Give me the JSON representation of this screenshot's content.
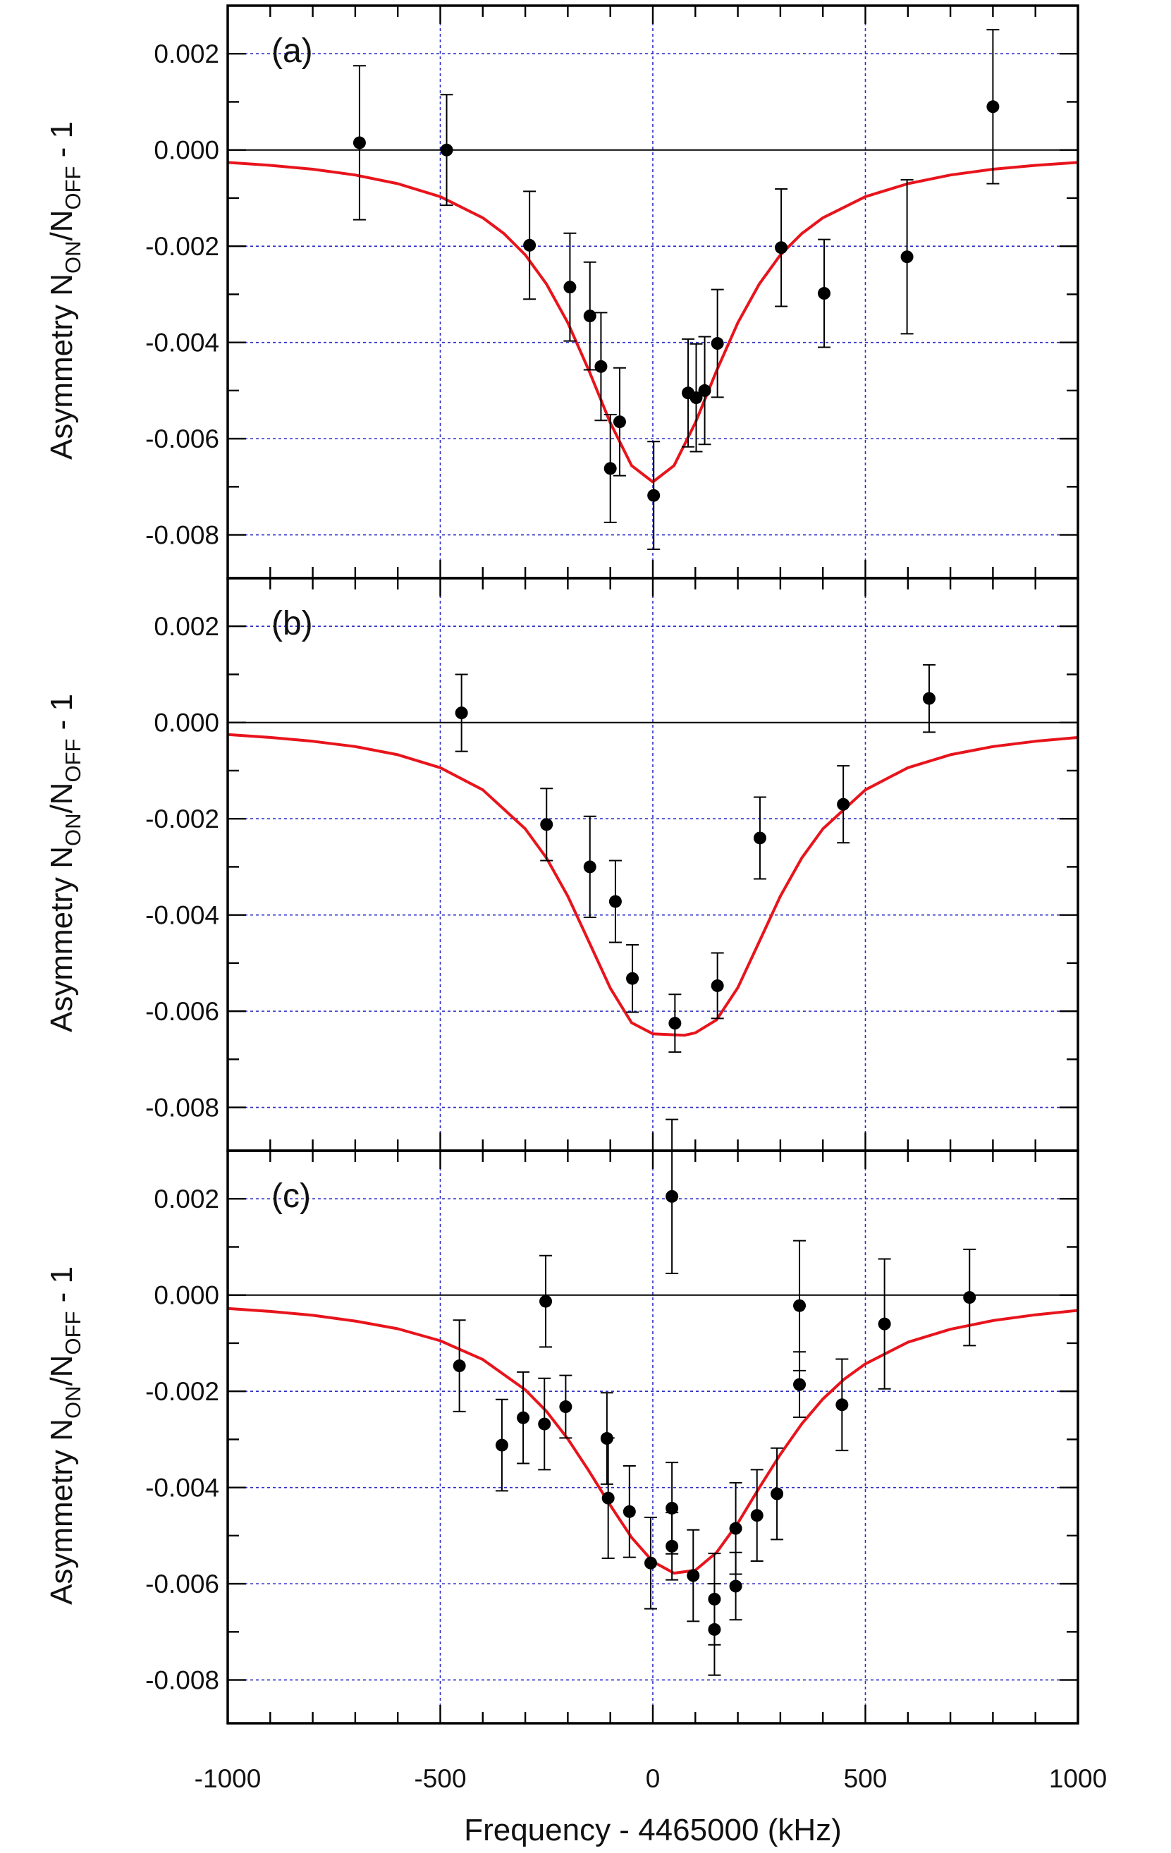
{
  "figure": {
    "xlabel": "Frequency - 4465000 (kHz)",
    "ylabel_main": "Asymmetry N",
    "ylabel_sub_on": "ON",
    "ylabel_mid": "/N",
    "ylabel_sub_off": "OFF",
    "ylabel_tail": " - 1",
    "x_tick_labels": [
      "-1000",
      "-500",
      "0",
      "500",
      "1000"
    ],
    "y_tick_labels": [
      "0.002",
      "0.000",
      "-0.002",
      "-0.004",
      "-0.006",
      "-0.008"
    ],
    "colors": {
      "fit": "#e8141c",
      "grid": "#2c2cc8",
      "points": "#000000",
      "frame": "#000000"
    }
  },
  "chart_data": [
    {
      "type": "scatter",
      "panel_label": "(a)",
      "xlim": [
        -1000,
        1000
      ],
      "ylim": [
        -0.0089,
        0.003
      ],
      "grid": true,
      "points": [
        {
          "x": -690,
          "y": 0.00015,
          "err": 0.0016
        },
        {
          "x": -485,
          "y": 0.0,
          "err": 0.00115
        },
        {
          "x": -290,
          "y": -0.00198,
          "err": 0.00112
        },
        {
          "x": -195,
          "y": -0.00285,
          "err": 0.00112
        },
        {
          "x": -148,
          "y": -0.00345,
          "err": 0.00112
        },
        {
          "x": -122,
          "y": -0.0045,
          "err": 0.00112
        },
        {
          "x": -100,
          "y": -0.00662,
          "err": 0.00112
        },
        {
          "x": -78,
          "y": -0.00565,
          "err": 0.00112
        },
        {
          "x": 2,
          "y": -0.00718,
          "err": 0.00112
        },
        {
          "x": 83,
          "y": -0.00505,
          "err": 0.00112
        },
        {
          "x": 102,
          "y": -0.00515,
          "err": 0.00112
        },
        {
          "x": 122,
          "y": -0.005,
          "err": 0.00112
        },
        {
          "x": 152,
          "y": -0.00402,
          "err": 0.00112
        },
        {
          "x": 302,
          "y": -0.00203,
          "err": 0.00122
        },
        {
          "x": 403,
          "y": -0.00298,
          "err": 0.00112
        },
        {
          "x": 598,
          "y": -0.00222,
          "err": 0.0016
        },
        {
          "x": 800,
          "y": 0.0009,
          "err": 0.0016
        }
      ],
      "fit": {
        "x": [
          -1000,
          -900,
          -800,
          -700,
          -600,
          -500,
          -400,
          -350,
          -300,
          -250,
          -200,
          -150,
          -100,
          -50,
          0,
          50,
          100,
          150,
          200,
          250,
          300,
          350,
          400,
          500,
          600,
          700,
          800,
          900,
          1000
        ],
        "y": [
          -0.00026,
          -0.00032,
          -0.0004,
          -0.00052,
          -0.0007,
          -0.00097,
          -0.00141,
          -0.00174,
          -0.00218,
          -0.00279,
          -0.00359,
          -0.00459,
          -0.00567,
          -0.00656,
          -0.0069,
          -0.00656,
          -0.00567,
          -0.00459,
          -0.00359,
          -0.00279,
          -0.00218,
          -0.00174,
          -0.00141,
          -0.00097,
          -0.0007,
          -0.00052,
          -0.0004,
          -0.00032,
          -0.00026
        ]
      }
    },
    {
      "type": "scatter",
      "panel_label": "(b)",
      "xlim": [
        -1000,
        1000
      ],
      "ylim": [
        -0.0089,
        0.003
      ],
      "grid": true,
      "points": [
        {
          "x": -450,
          "y": 0.0002,
          "err": 0.0008
        },
        {
          "x": -250,
          "y": -0.00212,
          "err": 0.00075
        },
        {
          "x": -148,
          "y": -0.003,
          "err": 0.00105
        },
        {
          "x": -88,
          "y": -0.00372,
          "err": 0.00085
        },
        {
          "x": -48,
          "y": -0.00532,
          "err": 0.0007
        },
        {
          "x": 52,
          "y": -0.00625,
          "err": 0.0006
        },
        {
          "x": 152,
          "y": -0.00547,
          "err": 0.00068
        },
        {
          "x": 252,
          "y": -0.0024,
          "err": 0.00085
        },
        {
          "x": 448,
          "y": -0.0017,
          "err": 0.0008
        },
        {
          "x": 650,
          "y": 0.0005,
          "err": 0.0007
        }
      ],
      "fit": {
        "x": [
          -1000,
          -900,
          -800,
          -700,
          -600,
          -500,
          -400,
          -300,
          -250,
          -200,
          -150,
          -100,
          -50,
          0,
          50,
          75,
          100,
          150,
          200,
          250,
          300,
          350,
          400,
          500,
          600,
          700,
          800,
          900,
          1000
        ],
        "y": [
          -0.00025,
          -0.00031,
          -0.00039,
          -0.0005,
          -0.00067,
          -0.00094,
          -0.0014,
          -0.00221,
          -0.00282,
          -0.00361,
          -0.00456,
          -0.00552,
          -0.00624,
          -0.00647,
          -0.00649,
          -0.0065,
          -0.00645,
          -0.00618,
          -0.00551,
          -0.00456,
          -0.00361,
          -0.00282,
          -0.00221,
          -0.0014,
          -0.00094,
          -0.00067,
          -0.0005,
          -0.00039,
          -0.00031
        ]
      }
    },
    {
      "type": "scatter",
      "panel_label": "(c)",
      "xlim": [
        -1000,
        1000
      ],
      "ylim": [
        -0.0089,
        0.003
      ],
      "grid": true,
      "points": [
        {
          "x": -455,
          "y": -0.00147,
          "err": 0.00095
        },
        {
          "x": -355,
          "y": -0.00312,
          "err": 0.00095
        },
        {
          "x": -305,
          "y": -0.00255,
          "err": 0.00095
        },
        {
          "x": -255,
          "y": -0.00268,
          "err": 0.00095
        },
        {
          "x": -252,
          "y": -0.00013,
          "err": 0.00095
        },
        {
          "x": -205,
          "y": -0.00232,
          "err": 0.00065
        },
        {
          "x": -108,
          "y": -0.00298,
          "err": 0.00095
        },
        {
          "x": -105,
          "y": -0.00422,
          "err": 0.00125
        },
        {
          "x": -55,
          "y": -0.0045,
          "err": 0.00095
        },
        {
          "x": -5,
          "y": -0.00557,
          "err": 0.00095
        },
        {
          "x": 45,
          "y": 0.00205,
          "err": 0.0016
        },
        {
          "x": 45,
          "y": -0.00443,
          "err": 0.00095
        },
        {
          "x": 45,
          "y": -0.00522,
          "err": 0.0007
        },
        {
          "x": 95,
          "y": -0.00583,
          "err": 0.00095
        },
        {
          "x": 145,
          "y": -0.00632,
          "err": 0.00095
        },
        {
          "x": 145,
          "y": -0.00695,
          "err": 0.00095
        },
        {
          "x": 195,
          "y": -0.00485,
          "err": 0.00095
        },
        {
          "x": 195,
          "y": -0.00605,
          "err": 0.0007
        },
        {
          "x": 245,
          "y": -0.00458,
          "err": 0.00095
        },
        {
          "x": 292,
          "y": -0.00413,
          "err": 0.00095
        },
        {
          "x": 345,
          "y": -0.00186,
          "err": 0.00068
        },
        {
          "x": 345,
          "y": -0.00022,
          "err": 0.00135
        },
        {
          "x": 445,
          "y": -0.00228,
          "err": 0.00095
        },
        {
          "x": 545,
          "y": -0.0006,
          "err": 0.00135
        },
        {
          "x": 745,
          "y": -5e-05,
          "err": 0.001
        }
      ],
      "fit": {
        "x": [
          -1000,
          -900,
          -800,
          -700,
          -600,
          -500,
          -400,
          -300,
          -250,
          -200,
          -150,
          -100,
          -50,
          0,
          50,
          100,
          150,
          200,
          250,
          300,
          350,
          400,
          450,
          500,
          600,
          700,
          800,
          900,
          1000
        ],
        "y": [
          -0.00028,
          -0.00034,
          -0.00042,
          -0.00054,
          -0.0007,
          -0.00095,
          -0.00134,
          -0.00197,
          -0.00242,
          -0.00299,
          -0.00366,
          -0.00437,
          -0.00504,
          -0.00554,
          -0.00578,
          -0.00572,
          -0.00535,
          -0.00474,
          -0.00401,
          -0.00331,
          -0.00268,
          -0.00216,
          -0.00175,
          -0.00143,
          -0.00098,
          -0.00071,
          -0.00053,
          -0.00041,
          -0.00032
        ]
      }
    }
  ]
}
